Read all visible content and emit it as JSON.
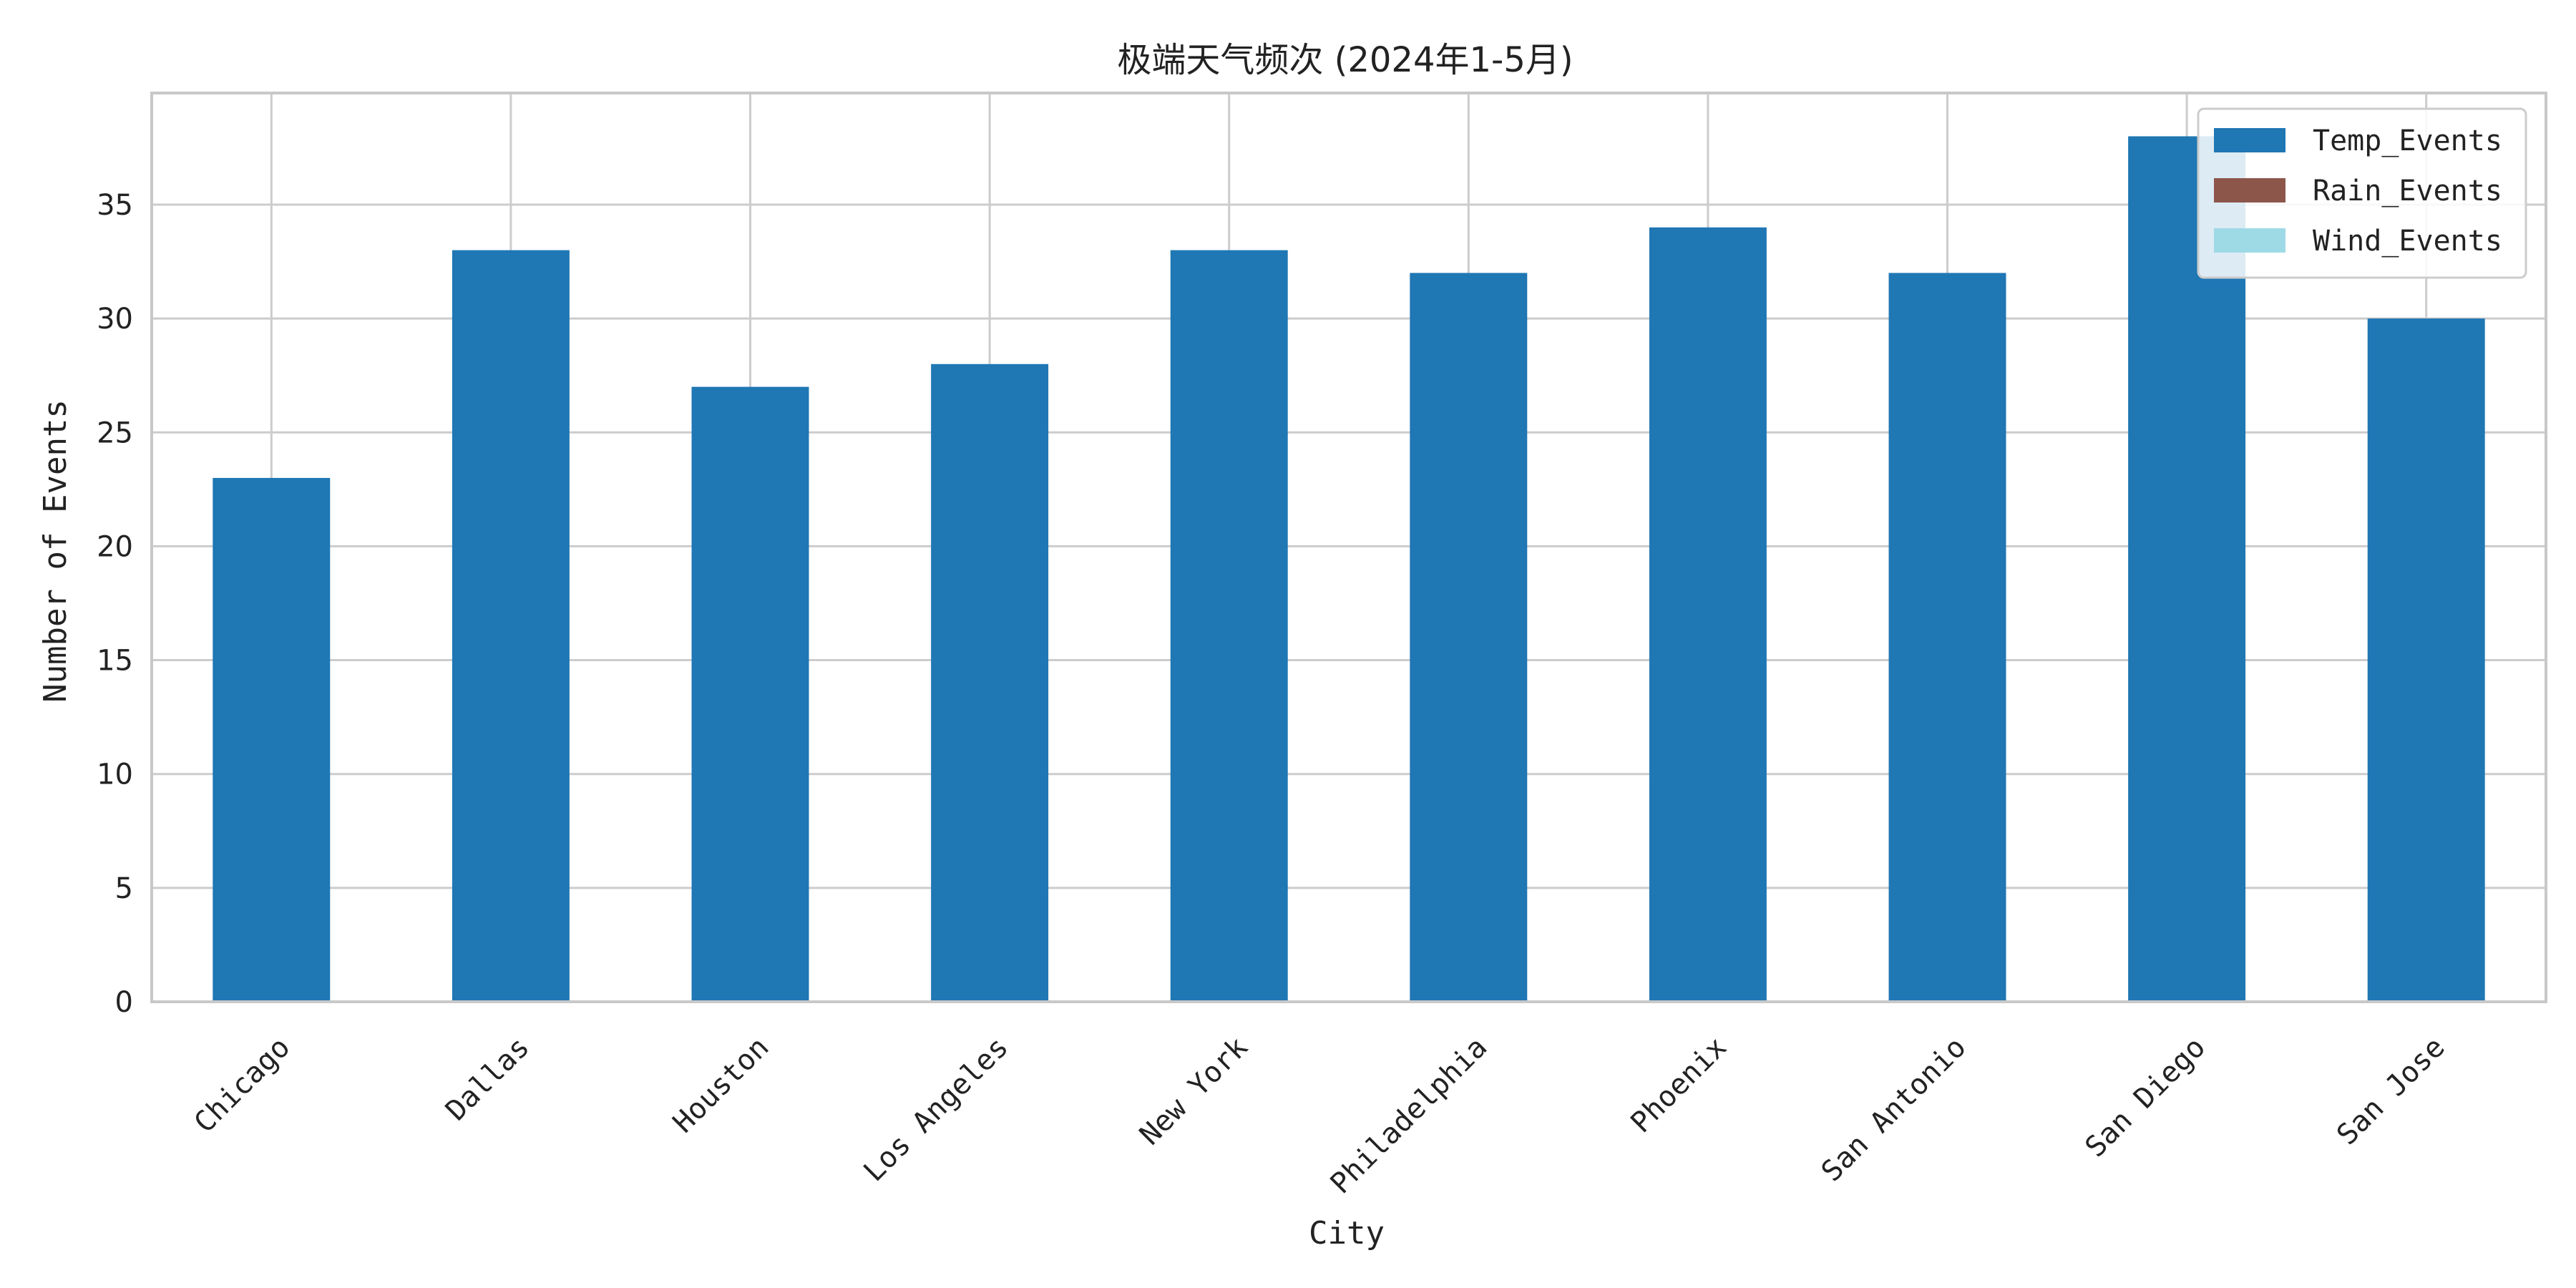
{
  "chart_data": {
    "type": "bar",
    "stacked": true,
    "title": "极端天气频次 (2024年1-5月)",
    "xlabel": "City",
    "ylabel": "Number of Events",
    "categories": [
      "Chicago",
      "Dallas",
      "Houston",
      "Los Angeles",
      "New York",
      "Philadelphia",
      "Phoenix",
      "San Antonio",
      "San Diego",
      "San Jose"
    ],
    "series": [
      {
        "name": "Temp_Events",
        "color": "#1f77b4",
        "values": [
          23,
          33,
          27,
          28,
          33,
          32,
          34,
          32,
          38,
          30
        ]
      },
      {
        "name": "Rain_Events",
        "color": "#8c564b",
        "values": [
          0,
          0,
          0,
          0,
          0,
          0,
          0,
          0,
          0,
          0
        ]
      },
      {
        "name": "Wind_Events",
        "color": "#9edae5",
        "values": [
          0,
          0,
          0,
          0,
          0,
          0,
          0,
          0,
          0,
          0
        ]
      }
    ],
    "ylim": [
      0,
      39.9
    ],
    "yticks": [
      0,
      5,
      10,
      15,
      20,
      25,
      30,
      35
    ],
    "grid": true,
    "legend_position": "top-right"
  }
}
